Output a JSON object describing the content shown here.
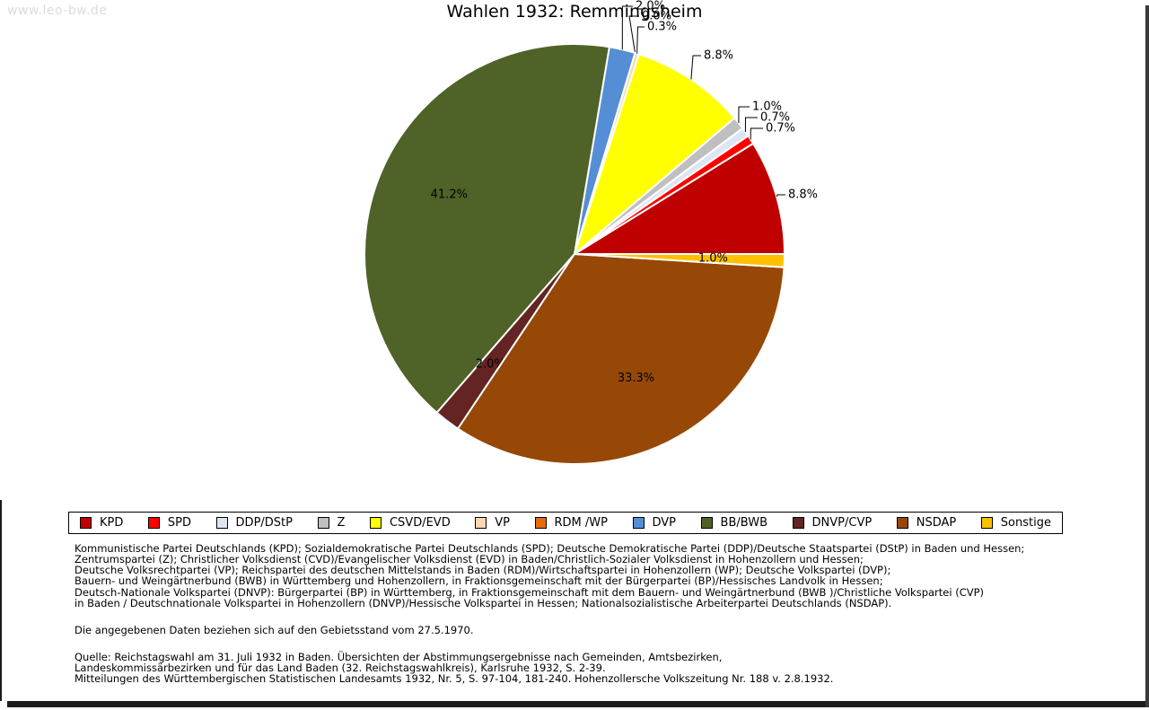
{
  "watermark": "www.leo-bw.de",
  "title": "Wahlen 1932: Remmingsheim",
  "chart_data": {
    "type": "pie",
    "title": "Wahlen 1932: Remmingsheim",
    "start_angle_deg": 0,
    "direction": "counterclockwise",
    "units": "percent",
    "slices": [
      {
        "party": "KPD",
        "value": 8.8,
        "label": "8.8%",
        "color": "#c00000",
        "label_placement": "outside"
      },
      {
        "party": "SPD",
        "value": 0.7,
        "label": "0.7%",
        "color": "#ff0000",
        "label_placement": "outside"
      },
      {
        "party": "DDP/DStP",
        "value": 0.7,
        "label": "0.7%",
        "color": "#dce6f1",
        "label_placement": "outside"
      },
      {
        "party": "Z",
        "value": 1.0,
        "label": "1.0%",
        "color": "#bfbfbf",
        "label_placement": "outside"
      },
      {
        "party": "CSVD/EVD",
        "value": 8.8,
        "label": "8.8%",
        "color": "#ffff00",
        "label_placement": "outside"
      },
      {
        "party": "VP",
        "value": 0.3,
        "label": "0.3%",
        "color": "#fcd5b4",
        "label_placement": "outside"
      },
      {
        "party": "RDM /WP",
        "value": 0.0,
        "label": "0.0%",
        "color": "#e36c09",
        "label_placement": "outside"
      },
      {
        "party": "DVP",
        "value": 2.0,
        "label": "2.0%",
        "color": "#558ed5",
        "label_placement": "outside"
      },
      {
        "party": "BB/BWB",
        "value": 41.2,
        "label": "41.2%",
        "color": "#4f6228",
        "label_placement": "inside"
      },
      {
        "party": "DNVP/CVP",
        "value": 2.0,
        "label": "2.0%",
        "color": "#632423",
        "label_placement": "inside"
      },
      {
        "party": "NSDAP",
        "value": 33.3,
        "label": "33.3%",
        "color": "#974806",
        "label_placement": "inside"
      },
      {
        "party": "Sonstige",
        "value": 1.0,
        "label": "1.0%",
        "color": "#ffc000",
        "label_placement": "inside"
      }
    ]
  },
  "footer": {
    "definitions": [
      "Kommunistische Partei Deutschlands (KPD); Sozialdemokratische Partei Deutschlands (SPD); Deutsche Demokratische Partei (DDP)/Deutsche Staatspartei (DStP) in Baden und Hessen;",
      "Zentrumspartei (Z); Christlicher Volksdienst (CVD)/Evangelischer Volksdienst (EVD) in Baden/Christlich-Sozialer Volksdienst in Hohenzollern und Hessen;",
      "Deutsche Volksrechtpartei (VP); Reichspartei des deutschen Mittelstands in Baden (RDM)/Wirtschaftspartei in Hohenzollern (WP); Deutsche Volkspartei (DVP);",
      "Bauern- und Weingärtnerbund (BWB) in Württemberg und Hohenzollern, in Fraktionsgemeinschaft mit der Bürgerpartei (BP)/Hessisches Landvolk in Hessen;",
      "Deutsch-Nationale Volkspartei (DNVP): Bürgerpartei (BP) in Württemberg, in Fraktionsgemeinschaft mit dem Bauern- und Weingärtnerbund (BWB )/Christliche Volkspartei (CVP)",
      "in Baden / Deutschnationale Volkspartei in Hohenzollern (DNVP)/Hessische Volkspartei in Hessen; Nationalsozialistische Arbeiterpartei Deutschlands (NSDAP)."
    ],
    "note": "Die angegebenen Daten beziehen sich auf den Gebietsstand vom 27.5.1970.",
    "source": [
      "Quelle: Reichstagswahl am 31. Juli 1932 in Baden. Übersichten der Abstimmungsergebnisse nach Gemeinden, Amtsbezirken,",
      "Landeskommissärbezirken und für das Land Baden (32. Reichstagswahlkreis), Karlsruhe 1932, S. 2-39.",
      "Mitteilungen des Württembergischen Statistischen Landesamts 1932, Nr. 5, S. 97-104, 181-240. Hohenzollersche Volkszeitung Nr. 188 v. 2.8.1932."
    ]
  }
}
